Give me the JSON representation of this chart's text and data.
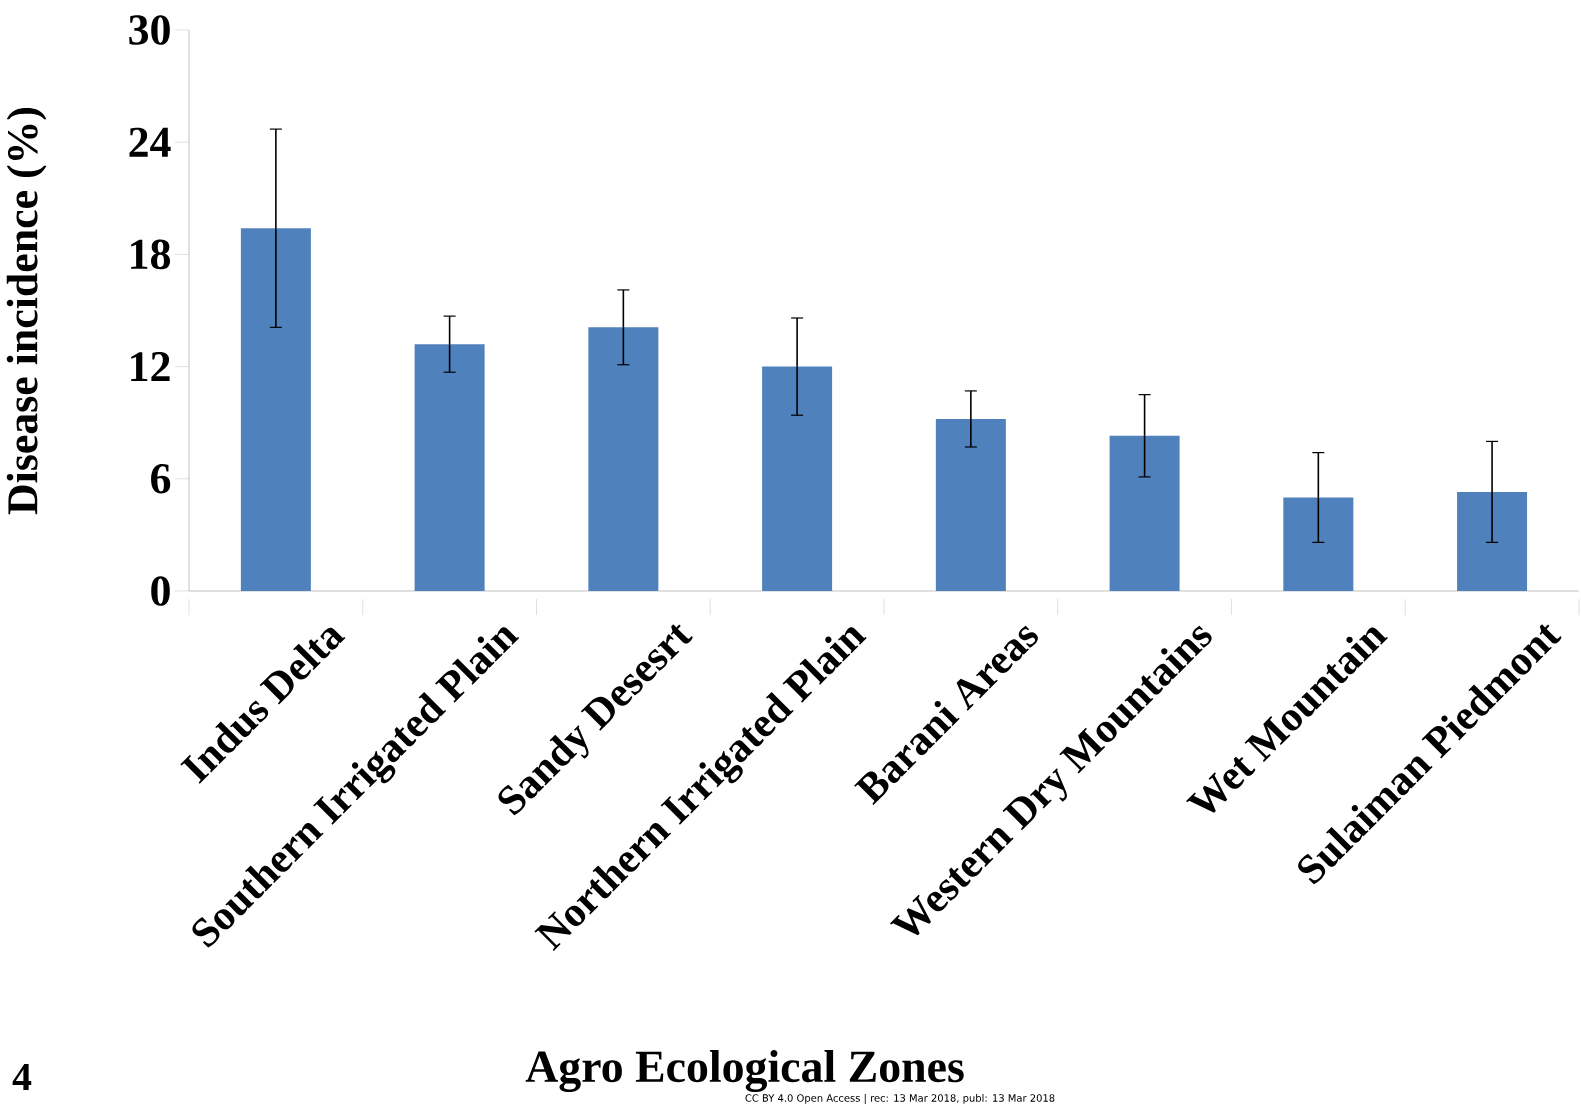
{
  "chart_data": {
    "type": "bar",
    "xlabel": "Agro Ecological Zones",
    "ylabel": "Disease incidence (%)",
    "categories": [
      "Indus Delta",
      "Southern Irrigated Plain",
      "Sandy Desesrt",
      "Northern Irrigated Plain",
      "Barani Areas",
      "Western Dry Mountains",
      "Wet Mountain",
      "Sulaiman Piedmont"
    ],
    "values": [
      19.4,
      13.2,
      14.1,
      12.0,
      9.2,
      8.3,
      5.0,
      5.3
    ],
    "errors": [
      5.3,
      1.5,
      2.0,
      2.6,
      1.5,
      2.2,
      2.4,
      2.7
    ],
    "color": "#4f81bd",
    "ylim": [
      0,
      30
    ],
    "yticks": [
      0,
      6,
      12,
      18,
      24,
      30
    ],
    "grid": false,
    "annotations": [
      "4",
      "CC BY 4.0 Open Access | rec: 13 Mar 2018, publ: 13 Mar 2018"
    ]
  }
}
